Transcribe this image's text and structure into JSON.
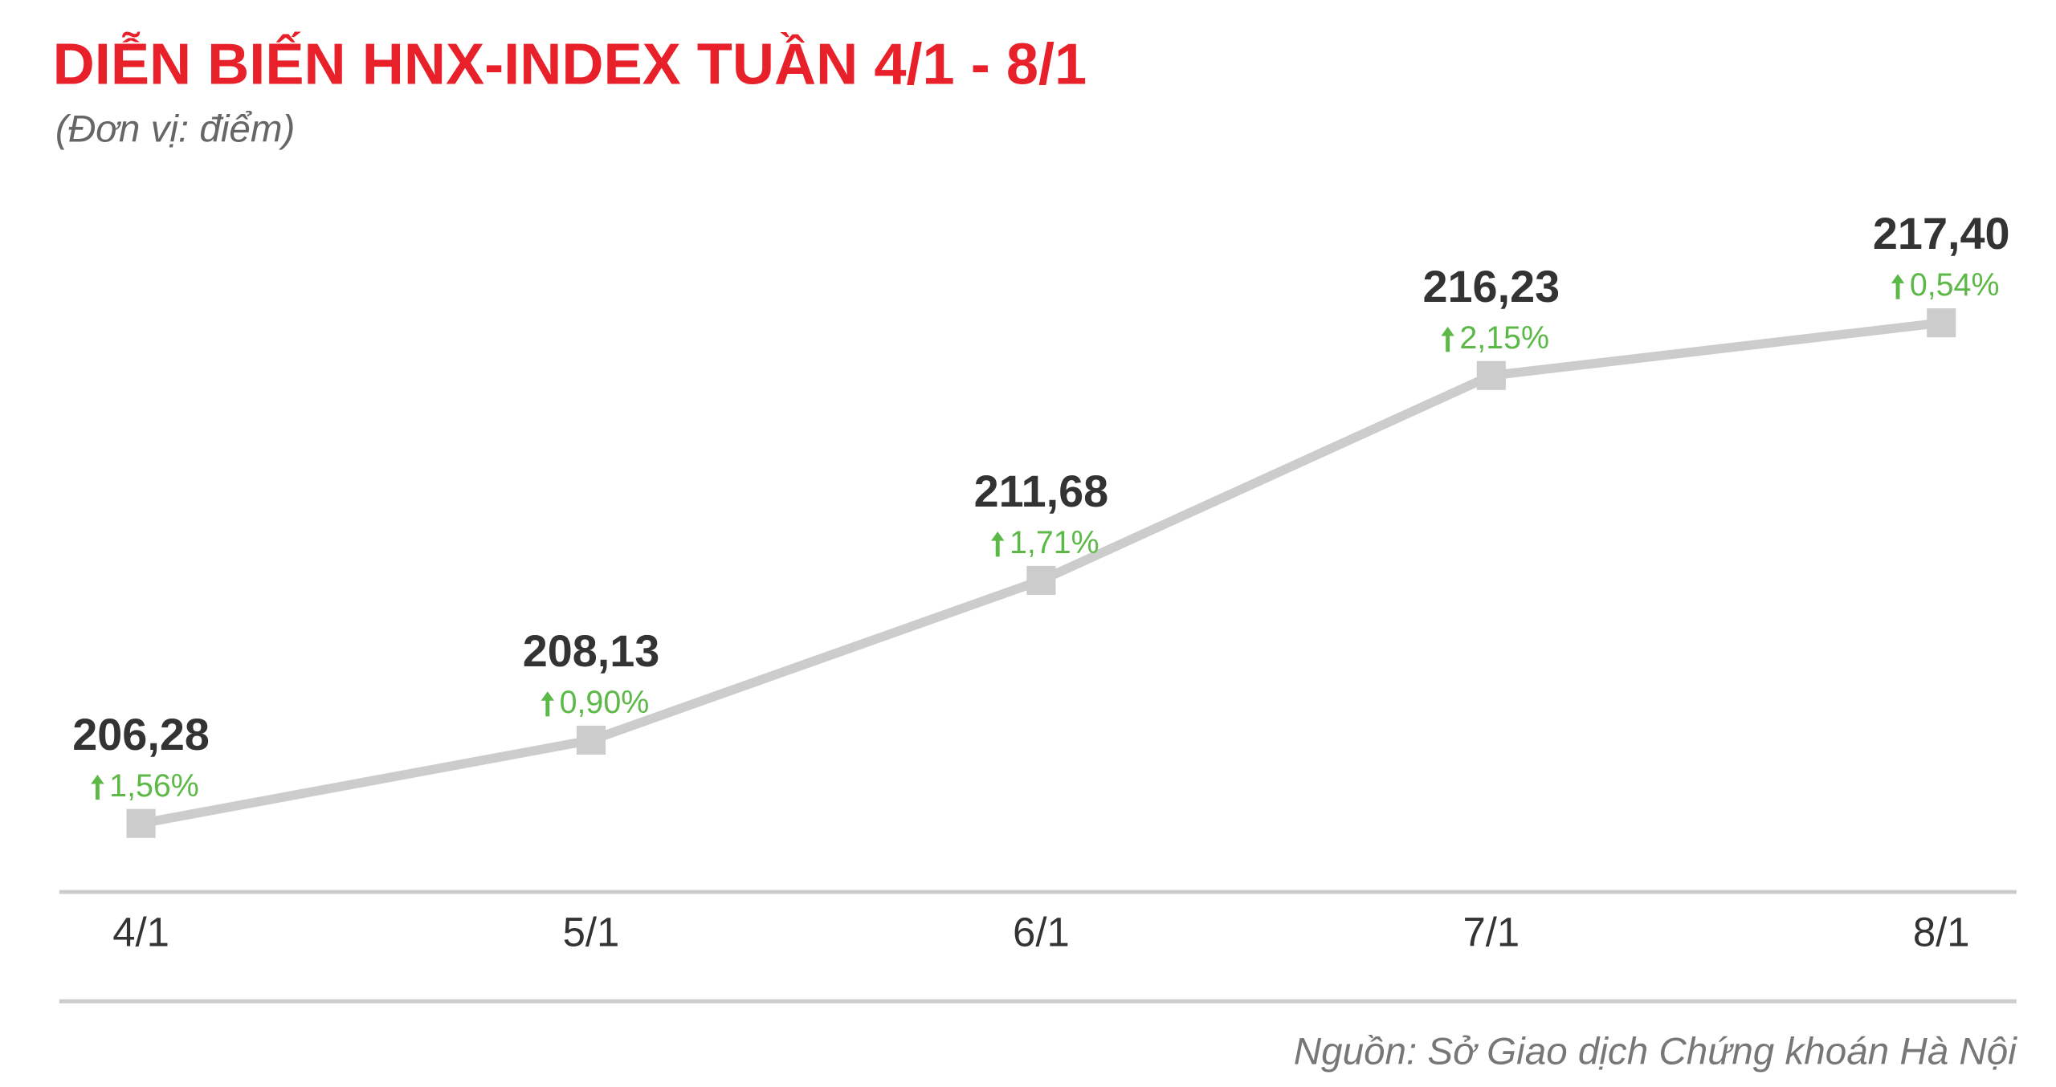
{
  "chart_data": {
    "type": "line",
    "title": "DIỄN BIẾN HNX-INDEX TUẦN 4/1 - 8/1",
    "subtitle": "(Đơn vị: điểm)",
    "categories": [
      "4/1",
      "5/1",
      "6/1",
      "7/1",
      "8/1"
    ],
    "values": [
      206.28,
      208.13,
      211.68,
      216.23,
      217.4
    ],
    "value_labels": [
      "206,28",
      "208,13",
      "211,68",
      "216,23",
      "217,40"
    ],
    "change_labels": [
      "1,56%",
      "0,90%",
      "1,71%",
      "2,15%",
      "0,54%"
    ],
    "color": "#cccccc",
    "change_color": "#5cb947",
    "source": "Nguồn: Sở Giao dịch Chứng khoán Hà Nội"
  }
}
